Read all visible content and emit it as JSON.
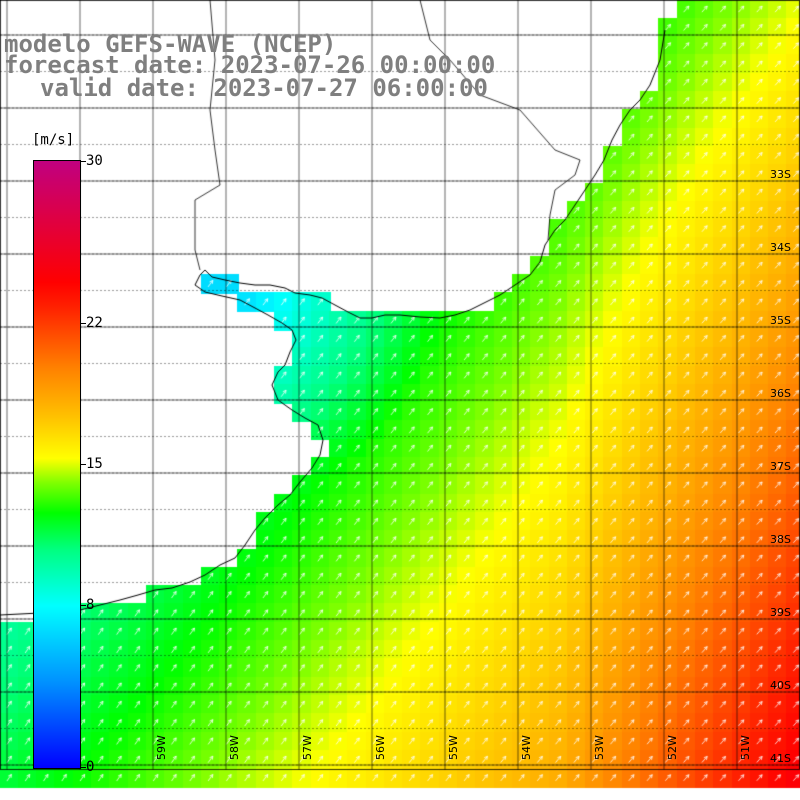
{
  "header": {
    "title_line1": "modelo GEFS-WAVE (NCEP)",
    "title_line2": "forecast date: 2023-07-26 00:00:00",
    "title_line3": "valid date: 2023-07-27 06:00:00"
  },
  "colorbar": {
    "units": "[m/s]",
    "ticks": [
      {
        "value": 30,
        "label": "30"
      },
      {
        "value": 22,
        "label": "22"
      },
      {
        "value": 15,
        "label": "15"
      },
      {
        "value": 8,
        "label": "8"
      },
      {
        "value": 0,
        "label": "0"
      }
    ],
    "range": [
      0,
      30
    ]
  },
  "map": {
    "lat_labels": [
      "33S",
      "34S",
      "35S",
      "36S",
      "37S",
      "38S",
      "39S",
      "40S",
      "41S"
    ],
    "lon_labels": [
      "59W",
      "58W",
      "57W",
      "56W",
      "55W",
      "54W",
      "53W",
      "52W",
      "51W"
    ],
    "lon_range": [
      -61,
      -50
    ],
    "lat_range": [
      -41,
      -30.5
    ],
    "colors": {
      "land": "#ffffff",
      "coast": "#000000",
      "grid": "#000000",
      "arrows": "#ffffff",
      "title": "#7f7f7f"
    }
  }
}
